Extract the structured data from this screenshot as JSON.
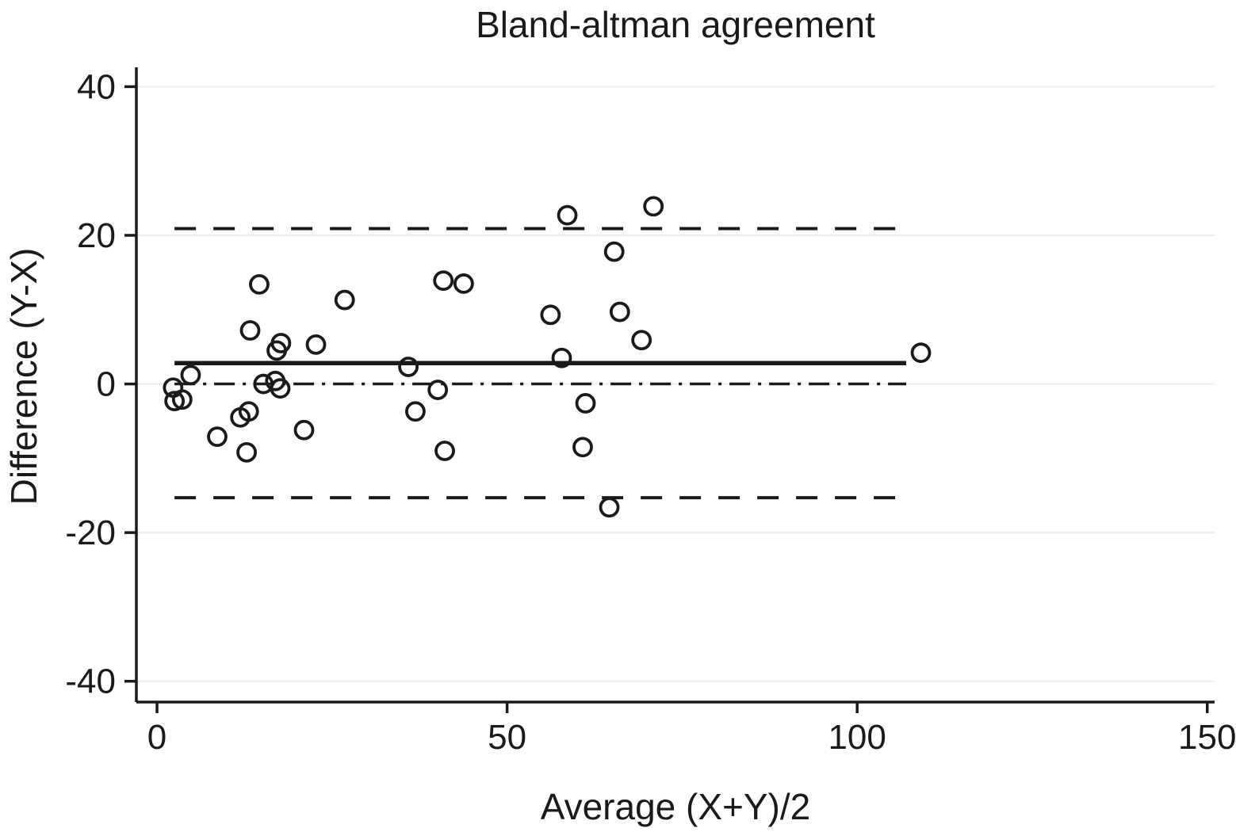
{
  "chart_data": {
    "type": "scatter",
    "title": "Bland-altman agreement",
    "xlabel": "Average (X+Y)/2",
    "ylabel": "Difference (Y-X)",
    "x_ticks": [
      0,
      50,
      100,
      150
    ],
    "y_ticks": [
      40,
      20,
      0,
      -20,
      -40
    ],
    "xlim": [
      -2.95,
      151.05
    ],
    "ylim": [
      -42.8,
      42.6
    ],
    "grid": "horizontal-light-at-y-ticks",
    "legend": "none",
    "ink_color": "#1a1a1a",
    "grid_color": "#ededed",
    "marker": {
      "shape": "open-circle",
      "color": "#1a1a1a"
    },
    "points": [
      [
        2.3,
        -0.5
      ],
      [
        2.5,
        -2.3
      ],
      [
        3.6,
        -2.1
      ],
      [
        4.8,
        1.2
      ],
      [
        8.6,
        -7.1
      ],
      [
        11.9,
        -4.5
      ],
      [
        12.8,
        -9.2
      ],
      [
        13.1,
        -3.7
      ],
      [
        13.3,
        7.2
      ],
      [
        14.6,
        13.4
      ],
      [
        15.2,
        0.0
      ],
      [
        16.9,
        0.4
      ],
      [
        17.6,
        -0.6
      ],
      [
        17.1,
        4.5
      ],
      [
        17.7,
        5.5
      ],
      [
        21.0,
        -6.2
      ],
      [
        22.7,
        5.3
      ],
      [
        26.8,
        11.3
      ],
      [
        35.9,
        2.3
      ],
      [
        36.9,
        -3.7
      ],
      [
        40.1,
        -0.8
      ],
      [
        40.9,
        13.9
      ],
      [
        41.1,
        -9.0
      ],
      [
        43.8,
        13.5
      ],
      [
        56.2,
        9.3
      ],
      [
        57.8,
        3.5
      ],
      [
        58.6,
        22.7
      ],
      [
        60.8,
        -8.5
      ],
      [
        61.2,
        -2.6
      ],
      [
        64.6,
        -16.6
      ],
      [
        65.3,
        17.8
      ],
      [
        66.1,
        9.7
      ],
      [
        69.2,
        5.9
      ],
      [
        70.9,
        23.9
      ],
      [
        109.1,
        4.2
      ]
    ],
    "reference_lines": [
      {
        "name": "zero-reference",
        "y": 0,
        "x_start": 2.5,
        "x_end": 107,
        "style": "dash-dot"
      },
      {
        "name": "upper-limit-of-agreement",
        "y": 20.9,
        "x_start": 2.5,
        "x_end": 107,
        "style": "dashed"
      },
      {
        "name": "lower-limit-of-agreement",
        "y": -15.3,
        "x_start": 2.5,
        "x_end": 107,
        "style": "dashed"
      },
      {
        "name": "mean-difference",
        "y": 2.8,
        "x_start": 2.5,
        "x_end": 107,
        "style": "solid"
      }
    ]
  }
}
